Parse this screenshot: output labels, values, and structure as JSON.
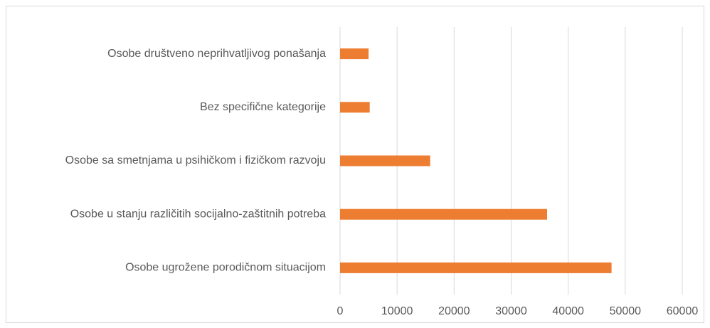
{
  "chart_data": {
    "type": "bar",
    "orientation": "horizontal",
    "categories": [
      "Osobe društveno neprihvatljivog ponašanja",
      "Bez specifične kategorije",
      "Osobe sa smetnjama u psihičkom i fizičkom razvoju",
      "Osobe u stanju različitih socijalno-zaštitnih potreba",
      "Osobe ugrožene porodičnom situacijom"
    ],
    "values": [
      5000,
      5200,
      15800,
      36300,
      47600
    ],
    "color": "#ed7d31",
    "xlim": [
      0,
      60000
    ],
    "xticks": [
      0,
      10000,
      20000,
      30000,
      40000,
      50000,
      60000
    ],
    "grid": true
  }
}
